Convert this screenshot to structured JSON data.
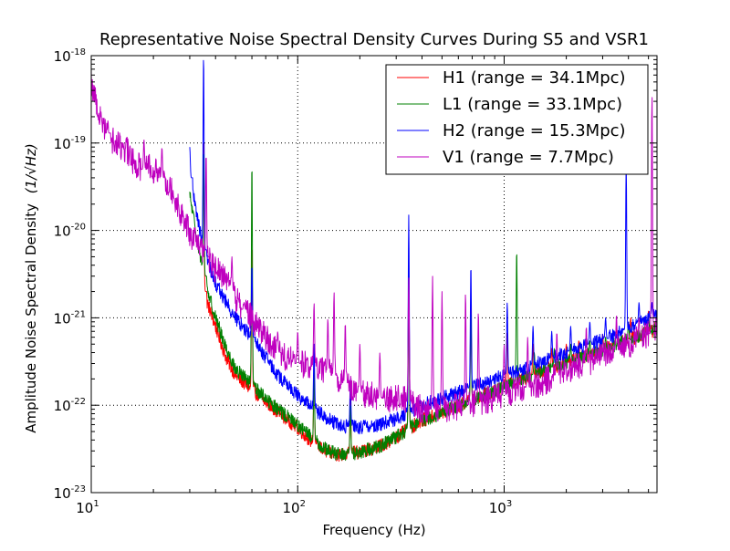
{
  "chart_data": {
    "type": "line",
    "title": "Representative Noise Spectral Density Curves During S5 and VSR1",
    "xlabel": "Frequency (Hz)",
    "ylabel": "Amplitude Noise Spectral Density",
    "ylabel_unit": "(1/√Hz)",
    "xscale": "log",
    "yscale": "log",
    "xlim": [
      10,
      5500
    ],
    "ylim": [
      1e-23,
      1e-18
    ],
    "grid": true,
    "legend_position": "top-right",
    "x_ticks": [
      {
        "value": 10,
        "base": "10",
        "exp": "1"
      },
      {
        "value": 100,
        "base": "10",
        "exp": "2"
      },
      {
        "value": 1000,
        "base": "10",
        "exp": "3"
      }
    ],
    "y_ticks": [
      {
        "value": 1e-23,
        "base": "10",
        "exp": "-23"
      },
      {
        "value": 1e-22,
        "base": "10",
        "exp": "-22"
      },
      {
        "value": 1e-21,
        "base": "10",
        "exp": "-21"
      },
      {
        "value": 1e-20,
        "base": "10",
        "exp": "-20"
      },
      {
        "value": 1e-19,
        "base": "10",
        "exp": "-19"
      },
      {
        "value": 1e-18,
        "base": "10",
        "exp": "-18"
      }
    ],
    "series": [
      {
        "name": "H1 (range = 34.1Mpc)",
        "color": "#ff0000",
        "points": [
          [
            35,
            2e-21
          ],
          [
            40,
            8e-22
          ],
          [
            45,
            3.5e-22
          ],
          [
            50,
            2.2e-22
          ],
          [
            60,
            1.5e-22
          ],
          [
            70,
            1.1e-22
          ],
          [
            80,
            8.5e-23
          ],
          [
            100,
            5.5e-23
          ],
          [
            120,
            3.6e-23
          ],
          [
            140,
            2.9e-23
          ],
          [
            160,
            2.7e-23
          ],
          [
            200,
            2.9e-23
          ],
          [
            250,
            3.4e-23
          ],
          [
            300,
            4.3e-23
          ],
          [
            350,
            5.5e-23
          ],
          [
            400,
            6.7e-23
          ],
          [
            500,
            8.2e-23
          ],
          [
            700,
            1.15e-22
          ],
          [
            1000,
            1.65e-22
          ],
          [
            1500,
            2.4e-22
          ],
          [
            2000,
            3.1e-22
          ],
          [
            3000,
            4.3e-22
          ],
          [
            4000,
            5.6e-22
          ],
          [
            5500,
            7.5e-22
          ]
        ],
        "peaks": [
          [
            35,
            1e-19
          ],
          [
            60,
            6e-21
          ],
          [
            120,
            3e-22
          ],
          [
            180,
            1.3e-22
          ],
          [
            345,
            5e-21
          ],
          [
            690,
            1.5e-21
          ],
          [
            1035,
            7e-22
          ],
          [
            1380,
            5e-22
          ],
          [
            1700,
            4.5e-22
          ],
          [
            2000,
            5e-22
          ],
          [
            2300,
            5.5e-22
          ],
          [
            3000,
            6.5e-22
          ],
          [
            3500,
            8e-22
          ],
          [
            4100,
            1e-21
          ],
          [
            5000,
            1.2e-21
          ]
        ]
      },
      {
        "name": "L1 (range = 33.1Mpc)",
        "color": "#008000",
        "points": [
          [
            30,
            2.5e-20
          ],
          [
            35,
            3e-21
          ],
          [
            40,
            1e-21
          ],
          [
            45,
            4.5e-22
          ],
          [
            50,
            2.6e-22
          ],
          [
            60,
            1.7e-22
          ],
          [
            70,
            1.2e-22
          ],
          [
            80,
            9e-23
          ],
          [
            100,
            6e-23
          ],
          [
            120,
            4e-23
          ],
          [
            140,
            3e-23
          ],
          [
            160,
            2.7e-23
          ],
          [
            200,
            2.9e-23
          ],
          [
            250,
            3.4e-23
          ],
          [
            300,
            4.3e-23
          ],
          [
            350,
            5.5e-23
          ],
          [
            400,
            6.7e-23
          ],
          [
            500,
            8.2e-23
          ],
          [
            700,
            1.15e-22
          ],
          [
            1000,
            1.6e-22
          ],
          [
            1500,
            2.4e-22
          ],
          [
            2000,
            3.1e-22
          ],
          [
            3000,
            4.3e-22
          ],
          [
            4000,
            5.6e-22
          ],
          [
            5500,
            7.5e-22
          ]
        ],
        "peaks": [
          [
            35,
            8e-20
          ],
          [
            60,
            6e-20
          ],
          [
            120,
            2.5e-22
          ],
          [
            180,
            1e-22
          ],
          [
            345,
            2e-21
          ],
          [
            690,
            1.2e-21
          ],
          [
            1150,
            6e-21
          ],
          [
            1400,
            4e-22
          ],
          [
            1750,
            4.5e-22
          ],
          [
            2100,
            5e-22
          ],
          [
            2600,
            5.5e-22
          ],
          [
            3100,
            6e-22
          ],
          [
            4000,
            9e-22
          ],
          [
            5000,
            1.1e-21
          ]
        ]
      },
      {
        "name": "H2 (range = 15.3Mpc)",
        "color": "#0000ff",
        "points": [
          [
            30,
            4e-20
          ],
          [
            35,
            6e-21
          ],
          [
            40,
            2.5e-21
          ],
          [
            45,
            1.5e-21
          ],
          [
            50,
            1e-21
          ],
          [
            60,
            6e-22
          ],
          [
            70,
            3.5e-22
          ],
          [
            80,
            2.2e-22
          ],
          [
            100,
            1.3e-22
          ],
          [
            120,
            9e-23
          ],
          [
            140,
            7e-23
          ],
          [
            160,
            5.8e-23
          ],
          [
            200,
            5.6e-23
          ],
          [
            250,
            6e-23
          ],
          [
            300,
            7e-23
          ],
          [
            350,
            8.5e-23
          ],
          [
            400,
            1e-22
          ],
          [
            500,
            1.2e-22
          ],
          [
            700,
            1.6e-22
          ],
          [
            1000,
            2.2e-22
          ],
          [
            1500,
            3.1e-22
          ],
          [
            2000,
            4e-22
          ],
          [
            3000,
            5.6e-22
          ],
          [
            4000,
            7.5e-22
          ],
          [
            5500,
            1.1e-21
          ]
        ],
        "peaks": [
          [
            30,
            9e-20
          ],
          [
            35,
            1e-18
          ],
          [
            60,
            4e-21
          ],
          [
            120,
            5e-22
          ],
          [
            180,
            2e-22
          ],
          [
            345,
            1.5e-20
          ],
          [
            690,
            4e-21
          ],
          [
            1035,
            1.5e-21
          ],
          [
            1380,
            8e-22
          ],
          [
            1700,
            7e-22
          ],
          [
            2100,
            8e-22
          ],
          [
            2600,
            9e-22
          ],
          [
            3100,
            1e-21
          ],
          [
            3900,
            6e-20
          ],
          [
            4500,
            1.5e-21
          ],
          [
            5200,
            1.5e-21
          ]
        ]
      },
      {
        "name": "V1 (range = 7.7Mpc)",
        "color": "#bf00bf",
        "points": [
          [
            10,
            5e-19
          ],
          [
            11,
            2e-19
          ],
          [
            12,
            1.3e-19
          ],
          [
            13,
            1e-19
          ],
          [
            14,
            9e-20
          ],
          [
            15,
            8e-20
          ],
          [
            16,
            6e-20
          ],
          [
            17,
            5.5e-20
          ],
          [
            18,
            5e-20
          ],
          [
            19,
            6e-20
          ],
          [
            20,
            5e-20
          ],
          [
            22,
            4e-20
          ],
          [
            24,
            3.5e-20
          ],
          [
            26,
            2e-20
          ],
          [
            28,
            1.4e-20
          ],
          [
            30,
            9e-21
          ],
          [
            33,
            7e-21
          ],
          [
            36,
            5e-21
          ],
          [
            40,
            3.5e-21
          ],
          [
            45,
            3e-21
          ],
          [
            50,
            1.6e-21
          ],
          [
            60,
            1e-21
          ],
          [
            70,
            6e-22
          ],
          [
            80,
            4e-22
          ],
          [
            100,
            3e-22
          ],
          [
            120,
            2.8e-22
          ],
          [
            150,
            2.2e-22
          ],
          [
            200,
            1.4e-22
          ],
          [
            250,
            1.2e-22
          ],
          [
            300,
            1.2e-22
          ],
          [
            350,
            1.1e-22
          ],
          [
            400,
            9e-23
          ],
          [
            500,
            9e-23
          ],
          [
            700,
            1.05e-22
          ],
          [
            1000,
            1.3e-22
          ],
          [
            1500,
            1.8e-22
          ],
          [
            2000,
            2.5e-22
          ],
          [
            3000,
            3.6e-22
          ],
          [
            4000,
            5e-22
          ],
          [
            5500,
            7e-22
          ]
        ],
        "peaks": [
          [
            12,
            1.5e-19
          ],
          [
            18,
            1.1e-19
          ],
          [
            22,
            9e-20
          ],
          [
            36,
            8e-20
          ],
          [
            48,
            5e-21
          ],
          [
            55,
            1.5e-21
          ],
          [
            80,
            7e-22
          ],
          [
            100,
            7e-22
          ],
          [
            120,
            1.5e-21
          ],
          [
            140,
            1e-21
          ],
          [
            150,
            2e-21
          ],
          [
            170,
            9e-22
          ],
          [
            200,
            5e-22
          ],
          [
            250,
            4e-22
          ],
          [
            345,
            3e-21
          ],
          [
            450,
            3e-21
          ],
          [
            500,
            2e-21
          ],
          [
            650,
            2e-21
          ],
          [
            750,
            1.2e-21
          ],
          [
            1000,
            5e-22
          ],
          [
            1300,
            6e-22
          ],
          [
            1800,
            7e-22
          ],
          [
            2500,
            8e-22
          ],
          [
            3500,
            1.1e-21
          ],
          [
            4500,
            1e-21
          ],
          [
            5200,
            4e-19
          ]
        ]
      }
    ]
  }
}
